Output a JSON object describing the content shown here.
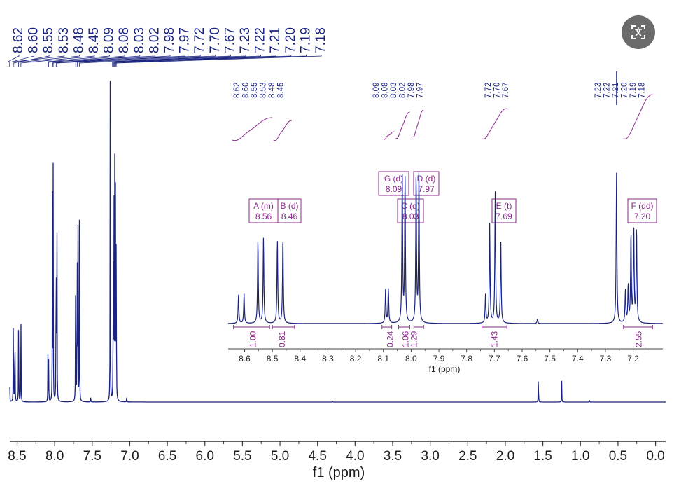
{
  "translate_button": {
    "icon": "translate-icon"
  },
  "colors": {
    "spectrum": "#1a237e",
    "annotation": "#8b2a8b"
  },
  "chart_data": [
    {
      "type": "line",
      "title": "",
      "xlabel": "f1 (ppm)",
      "xlim": [
        8.65,
        -0.05
      ],
      "x_reversed": true,
      "grid": false,
      "x_ticks": [
        "8.5",
        "8.0",
        "7.5",
        "7.0",
        "6.5",
        "6.0",
        "5.5",
        "5.0",
        "4.5",
        "4.0",
        "3.5",
        "3.0",
        "2.5",
        "2.0",
        "1.5",
        "1.0",
        "0.5",
        "0.0"
      ],
      "peak_labels": [
        "8.62",
        "8.60",
        "8.55",
        "8.53",
        "8.48",
        "8.45",
        "8.09",
        "8.08",
        "8.03",
        "8.02",
        "7.98",
        "7.97",
        "7.72",
        "7.70",
        "7.67",
        "7.23",
        "7.22",
        "7.21",
        "7.20",
        "7.19",
        "7.18"
      ],
      "peaks": [
        {
          "x": 8.62,
          "y": 0.1
        },
        {
          "x": 8.6,
          "y": 0.1
        },
        {
          "x": 8.55,
          "y": 0.31
        },
        {
          "x": 8.53,
          "y": 0.32
        },
        {
          "x": 8.48,
          "y": 0.32
        },
        {
          "x": 8.45,
          "y": 0.33
        },
        {
          "x": 8.09,
          "y": 0.13
        },
        {
          "x": 8.08,
          "y": 0.13
        },
        {
          "x": 8.03,
          "y": 0.65
        },
        {
          "x": 8.02,
          "y": 0.66
        },
        {
          "x": 7.98,
          "y": 0.68
        },
        {
          "x": 7.97,
          "y": 0.68
        },
        {
          "x": 7.72,
          "y": 0.6
        },
        {
          "x": 7.7,
          "y": 0.62
        },
        {
          "x": 7.69,
          "y": 0.58
        },
        {
          "x": 7.67,
          "y": 0.56
        },
        {
          "x": 7.52,
          "y": 0.02
        },
        {
          "x": 7.26,
          "y": 0.98
        },
        {
          "x": 7.22,
          "y": 0.6
        },
        {
          "x": 7.21,
          "y": 0.64
        },
        {
          "x": 7.2,
          "y": 0.66
        },
        {
          "x": 7.19,
          "y": 0.64
        },
        {
          "x": 7.18,
          "y": 0.62
        },
        {
          "x": 7.04,
          "y": 0.02
        },
        {
          "x": 4.3,
          "y": 0.004
        },
        {
          "x": 1.56,
          "y": 0.1
        },
        {
          "x": 1.25,
          "y": 0.07
        },
        {
          "x": 0.88,
          "y": 0.008
        }
      ]
    },
    {
      "type": "line",
      "title": "",
      "xlabel": "f1 (ppm)",
      "xlim": [
        8.69,
        7.12
      ],
      "x_reversed": true,
      "grid": false,
      "x_ticks": [
        "8.6",
        "8.5",
        "8.4",
        "8.3",
        "8.2",
        "8.1",
        "8.0",
        "7.9",
        "7.8",
        "7.7",
        "7.6",
        "7.5",
        "7.4",
        "7.3",
        "7.2"
      ],
      "peak_label_groups": [
        [
          "8.62",
          "8.60",
          "8.55",
          "8.53",
          "8.48",
          "8.45"
        ],
        [
          "8.09",
          "8.08",
          "8.03",
          "8.02",
          "7.98",
          "7.97"
        ],
        [
          "7.72",
          "7.70",
          "7.67"
        ],
        [
          "7.23",
          "7.22",
          "7.21",
          "7.20",
          "7.19",
          "7.18"
        ]
      ],
      "peaks": [
        {
          "x": 8.622,
          "y": 0.19
        },
        {
          "x": 8.602,
          "y": 0.2
        },
        {
          "x": 8.552,
          "y": 0.56
        },
        {
          "x": 8.532,
          "y": 0.57
        },
        {
          "x": 8.482,
          "y": 0.56
        },
        {
          "x": 8.462,
          "y": 0.58
        },
        {
          "x": 8.092,
          "y": 0.23
        },
        {
          "x": 8.082,
          "y": 0.23
        },
        {
          "x": 8.032,
          "y": 0.98
        },
        {
          "x": 8.022,
          "y": 0.99
        },
        {
          "x": 7.982,
          "y": 0.99
        },
        {
          "x": 7.972,
          "y": 1.0
        },
        {
          "x": 7.732,
          "y": 0.19
        },
        {
          "x": 7.717,
          "y": 0.66
        },
        {
          "x": 7.697,
          "y": 0.88
        },
        {
          "x": 7.677,
          "y": 0.56
        },
        {
          "x": 7.545,
          "y": 0.03
        },
        {
          "x": 7.26,
          "y": 1.0
        },
        {
          "x": 7.228,
          "y": 0.22
        },
        {
          "x": 7.218,
          "y": 0.25
        },
        {
          "x": 7.208,
          "y": 0.6
        },
        {
          "x": 7.198,
          "y": 0.66
        },
        {
          "x": 7.188,
          "y": 0.64
        }
      ],
      "multiplets": [
        {
          "label": "A (m)",
          "shift": "8.56",
          "x": 8.56
        },
        {
          "label": "B (d)",
          "shift": "8.46",
          "x": 8.46
        },
        {
          "label": "G (d)",
          "shift": "8.09",
          "x": 8.09
        },
        {
          "label": "D (d)",
          "shift": "7.97",
          "x": 7.97
        },
        {
          "label": "C (d)",
          "shift": "8.03",
          "x": 8.03
        },
        {
          "label": "E (t)",
          "shift": "7.69",
          "x": 7.69
        },
        {
          "label": "F (dd)",
          "shift": "7.20",
          "x": 7.2
        }
      ],
      "integrals": [
        {
          "from": 8.64,
          "to": 8.51,
          "value": "1.00",
          "label_x": 8.57
        },
        {
          "from": 8.5,
          "to": 8.42,
          "value": "0.81",
          "label_x": 8.465
        },
        {
          "from": 8.105,
          "to": 8.07,
          "value": "0.24",
          "label_x": 8.075
        },
        {
          "from": 8.045,
          "to": 8.005,
          "value": "1.06",
          "label_x": 8.02
        },
        {
          "from": 7.99,
          "to": 7.955,
          "value": "1.29",
          "label_x": 7.99
        },
        {
          "from": 7.745,
          "to": 7.655,
          "value": "1.43",
          "label_x": 7.7
        },
        {
          "from": 7.235,
          "to": 7.13,
          "value": "2.55",
          "label_x": 7.18
        }
      ]
    }
  ]
}
